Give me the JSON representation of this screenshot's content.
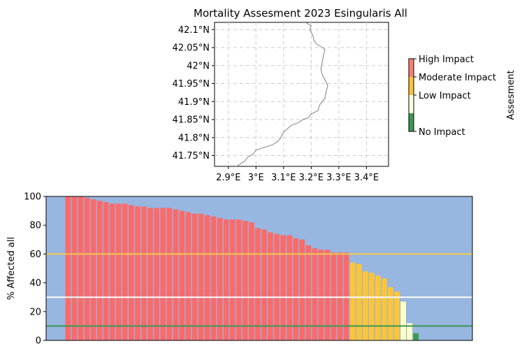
{
  "chart_data": [
    {
      "type": "map",
      "title": "Mortality Assesment 2023 Esingularis All",
      "lat_ticks": [
        "42.1°N",
        "42.05°N",
        "42°N",
        "41.95°N",
        "41.9°N",
        "41.85°N",
        "41.8°N",
        "41.75°N"
      ],
      "lat_values": [
        42.1,
        42.05,
        42.0,
        41.95,
        41.9,
        41.85,
        41.8,
        41.75
      ],
      "lon_ticks": [
        "2.9°E",
        "3°E",
        "3.1°E",
        "3.2°E",
        "3.3°E",
        "3.4°E"
      ],
      "lon_values": [
        2.9,
        3.0,
        3.1,
        3.2,
        3.3,
        3.4
      ],
      "xlim": [
        2.85,
        3.48
      ],
      "ylim": [
        41.72,
        42.12
      ],
      "grid": true,
      "coastline_color": "#808080",
      "coastline": [
        [
          3.18,
          42.12
        ],
        [
          3.19,
          42.115
        ],
        [
          3.2,
          42.11
        ],
        [
          3.195,
          42.1
        ],
        [
          3.205,
          42.085
        ],
        [
          3.21,
          42.07
        ],
        [
          3.22,
          42.06
        ],
        [
          3.23,
          42.055
        ],
        [
          3.25,
          42.045
        ],
        [
          3.245,
          42.03
        ],
        [
          3.24,
          42.01
        ],
        [
          3.235,
          41.99
        ],
        [
          3.24,
          41.975
        ],
        [
          3.25,
          41.96
        ],
        [
          3.26,
          41.945
        ],
        [
          3.255,
          41.93
        ],
        [
          3.25,
          41.91
        ],
        [
          3.24,
          41.9
        ],
        [
          3.23,
          41.89
        ],
        [
          3.225,
          41.875
        ],
        [
          3.2,
          41.865
        ],
        [
          3.19,
          41.855
        ],
        [
          3.17,
          41.85
        ],
        [
          3.15,
          41.84
        ],
        [
          3.13,
          41.835
        ],
        [
          3.115,
          41.825
        ],
        [
          3.1,
          41.815
        ],
        [
          3.09,
          41.8
        ],
        [
          3.08,
          41.79
        ],
        [
          3.06,
          41.78
        ],
        [
          3.04,
          41.775
        ],
        [
          3.02,
          41.77
        ],
        [
          3.0,
          41.765
        ],
        [
          2.99,
          41.755
        ],
        [
          2.97,
          41.745
        ],
        [
          2.96,
          41.735
        ],
        [
          2.94,
          41.725
        ],
        [
          2.93,
          41.72
        ]
      ]
    },
    {
      "type": "colorbar",
      "label": "Assesment",
      "levels": [
        {
          "label": "High Impact",
          "color": "#fa8072"
        },
        {
          "label": "Moderate Impact",
          "color": "#fbc53a"
        },
        {
          "label": "Low Impact",
          "color": "#ffffe0"
        },
        {
          "label": "No Impact",
          "color": "#3d9950"
        }
      ]
    },
    {
      "type": "bar",
      "ylabel": "% Affected all",
      "ylim": [
        0,
        100
      ],
      "yticks": [
        0,
        20,
        40,
        60,
        80,
        100
      ],
      "background": "#97b6e0",
      "values": [
        100,
        100,
        100,
        99,
        98,
        97,
        96,
        95,
        95,
        95,
        94,
        93,
        93,
        92,
        92,
        92,
        92,
        91,
        90,
        89,
        88,
        88,
        87,
        86,
        85,
        84,
        84,
        84,
        83,
        82,
        78,
        77,
        75,
        74,
        73,
        73,
        71,
        70,
        66,
        64,
        63,
        63,
        61,
        61,
        61,
        54,
        53,
        48,
        47,
        45,
        43,
        37,
        34,
        27,
        12,
        5
      ],
      "thresholds": [
        {
          "value": 60,
          "color": "#f2c94c"
        },
        {
          "value": 30,
          "color": "#ffffff"
        },
        {
          "value": 10,
          "color": "#3d9950"
        }
      ],
      "colors": {
        "high": "#f96b6b",
        "moderate": "#fbc53a",
        "low": "#ffffc8",
        "none": "#3d9950"
      }
    }
  ]
}
